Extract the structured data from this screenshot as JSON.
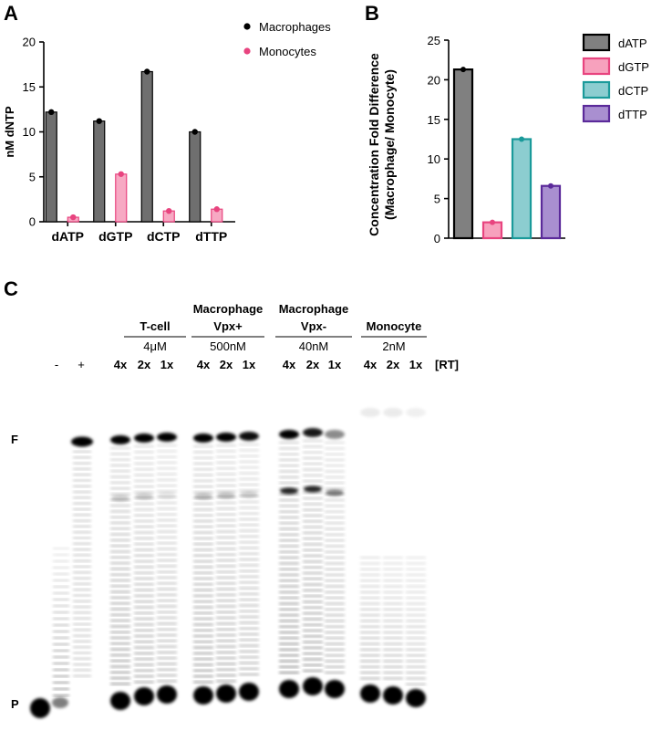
{
  "panels": {
    "a": "A",
    "b": "B",
    "c": "C"
  },
  "chart_data": [
    {
      "type": "bar",
      "ylabel": "nM dNTP",
      "xlabel": "",
      "ylim": [
        0,
        20
      ],
      "yticks": [
        0,
        5,
        10,
        15,
        20
      ],
      "categories": [
        "dATP",
        "dGTP",
        "dCTP",
        "dTTP"
      ],
      "legend_position": "top-right",
      "series": [
        {
          "name": "Macrophages",
          "values": [
            12.2,
            11.2,
            16.7,
            10.0
          ],
          "color": "#6f6f6f",
          "marker": "#000000"
        },
        {
          "name": "Monocytes",
          "values": [
            0.5,
            5.3,
            1.2,
            1.4
          ],
          "color": "#f7a9c3",
          "marker": "#e8447f"
        }
      ]
    },
    {
      "type": "bar",
      "ylabel": "Concentration Fold Difference\n(Macrophage/ Monocyte)",
      "xlabel": "",
      "ylim": [
        0,
        25
      ],
      "yticks": [
        0,
        5,
        10,
        15,
        20,
        25
      ],
      "categories": [
        "dATP",
        "dGTP",
        "dCTP",
        "dTTP"
      ],
      "legend_position": "top-right",
      "values": [
        21.3,
        2.0,
        12.5,
        6.6
      ],
      "colors": [
        {
          "fill": "#808080",
          "edge": "#000000"
        },
        {
          "fill": "#f7a1bd",
          "edge": "#e8447f"
        },
        {
          "fill": "#8ccdd0",
          "edge": "#1a9a9a"
        },
        {
          "fill": "#a98fd0",
          "edge": "#5b2a9a"
        }
      ]
    }
  ],
  "gel": {
    "lane_labels_top": [
      "-",
      "+"
    ],
    "groups": [
      {
        "name": "T-cell",
        "name2": "",
        "conc": "4μM",
        "lanes": [
          "4x",
          "2x",
          "1x"
        ]
      },
      {
        "name": "Macrophage",
        "name2": "Vpx+",
        "conc": "500nM",
        "lanes": [
          "4x",
          "2x",
          "1x"
        ]
      },
      {
        "name": "Macrophage",
        "name2": "Vpx-",
        "conc": "40nM",
        "lanes": [
          "4x",
          "2x",
          "1x"
        ]
      },
      {
        "name": "Monocyte",
        "name2": "",
        "conc": "2nM",
        "lanes": [
          "4x",
          "2x",
          "1x"
        ]
      }
    ],
    "rt_label": "[RT]",
    "marker_f": "F",
    "marker_p": "P"
  }
}
